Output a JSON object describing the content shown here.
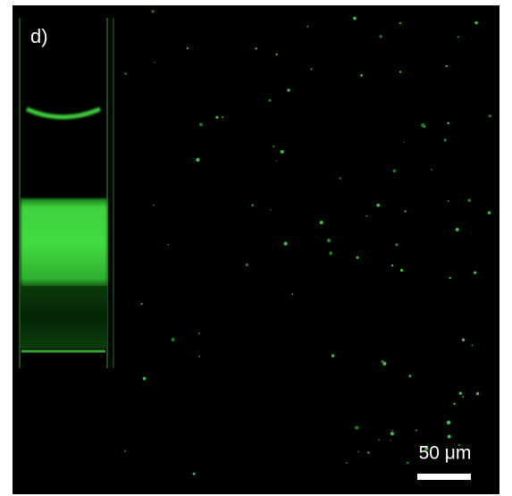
{
  "panel_label": "d)",
  "scale_bar": {
    "label": "50 μm"
  }
}
